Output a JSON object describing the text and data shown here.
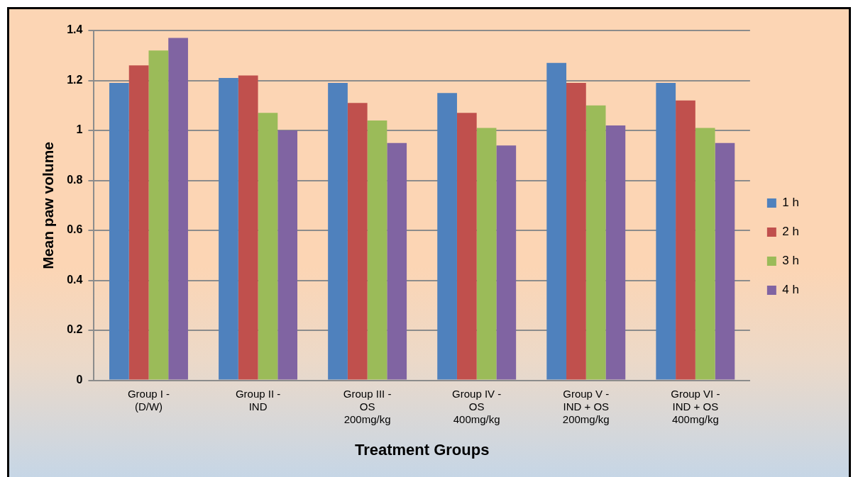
{
  "chart_data": {
    "type": "bar",
    "xlabel": "Treatment Groups",
    "ylabel": "Mean paw volume",
    "categories": [
      "Group I -\n(D/W)",
      "Group II -\nIND",
      "Group III -\nOS\n200mg/kg",
      "Group IV -\nOS\n400mg/kg",
      "Group V -\nIND + OS\n200mg/kg",
      "Group VI -\nIND + OS\n400mg/kg"
    ],
    "series": [
      {
        "name": "1 h",
        "color": "#4f81bd",
        "values": [
          1.19,
          1.21,
          1.19,
          1.15,
          1.27,
          1.19
        ]
      },
      {
        "name": "2 h",
        "color": "#c0504d",
        "values": [
          1.26,
          1.22,
          1.11,
          1.07,
          1.19,
          1.12
        ]
      },
      {
        "name": "3 h",
        "color": "#9bbb59",
        "values": [
          1.32,
          1.07,
          1.04,
          1.01,
          1.1,
          1.01
        ]
      },
      {
        "name": "4 h",
        "color": "#8064a2",
        "values": [
          1.37,
          1.0,
          0.95,
          0.94,
          1.02,
          0.95
        ]
      }
    ],
    "ylim": [
      0,
      1.4
    ],
    "yticks": [
      0,
      0.2,
      0.4,
      0.6,
      0.8,
      1,
      1.2,
      1.4
    ],
    "grid": "y",
    "legend": "right"
  }
}
